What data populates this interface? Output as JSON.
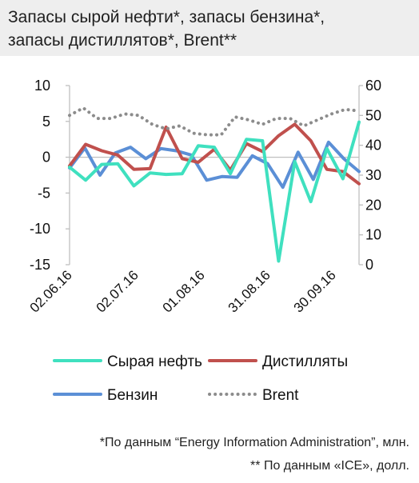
{
  "title": {
    "line1": "Запасы сырой нефти*, запасы бензина*,",
    "line2": "запасы дистиллятов*, Brent**"
  },
  "footnotes": {
    "line1": "*По данным “Energy Information Administration”, млн.",
    "line2": "** По данным «ICE», долл."
  },
  "colors": {
    "crude": "#3fe0bf",
    "distillates": "#c0504d",
    "gasoline": "#5b8fd6",
    "brent": "#8c8c8c",
    "axis": "#bfbfbf"
  },
  "chart_data": {
    "type": "line",
    "x_tick_labels": [
      "02.06.16",
      "02.07.16",
      "01.08.16",
      "31.08.16",
      "30.09.16"
    ],
    "ylim": [
      -15,
      10
    ],
    "y_ticks": [
      10,
      5,
      0,
      -5,
      -10,
      -15
    ],
    "y2lim": [
      0,
      60
    ],
    "y2_ticks": [
      60,
      50,
      40,
      30,
      20,
      10,
      0
    ],
    "grid": false,
    "legend_placement": "bottom",
    "series": [
      {
        "name": "Сырая нефть",
        "axis": "left",
        "style": "solid",
        "color_key": "crude",
        "values": [
          -1.4,
          -3.2,
          -1.0,
          -0.9,
          -4.0,
          -2.2,
          -2.4,
          -2.3,
          1.6,
          1.4,
          -2.3,
          2.5,
          2.3,
          -14.5,
          -0.6,
          -6.2,
          1.2,
          -3.0,
          4.9
        ]
      },
      {
        "name": "Дистилляты",
        "axis": "left",
        "style": "solid",
        "color_key": "distillates",
        "values": [
          -1.2,
          1.8,
          0.9,
          0.3,
          -1.7,
          -1.6,
          4.2,
          -0.2,
          -0.7,
          1.1,
          -1.8,
          1.9,
          0.8,
          3.0,
          4.6,
          2.3,
          -1.7,
          -2.0,
          -3.7
        ]
      },
      {
        "name": "Бензин",
        "axis": "left",
        "style": "solid",
        "color_key": "gasoline",
        "values": [
          -1.5,
          1.3,
          -2.5,
          0.6,
          1.4,
          -0.2,
          1.2,
          0.9,
          0.3,
          -3.2,
          -2.7,
          -2.8,
          0.2,
          -0.9,
          -4.2,
          0.7,
          -3.1,
          2.1,
          -0.2,
          -2.0
        ]
      },
      {
        "name": "Brent",
        "axis": "right",
        "style": "dotted",
        "color_key": "brent",
        "values": [
          50,
          52.5,
          49,
          49,
          50.5,
          50,
          47,
          45.5,
          46.5,
          44,
          43.5,
          43.5,
          49.5,
          48.5,
          47,
          49,
          49,
          46.5,
          48.5,
          50.5,
          52,
          51.5
        ]
      }
    ]
  }
}
